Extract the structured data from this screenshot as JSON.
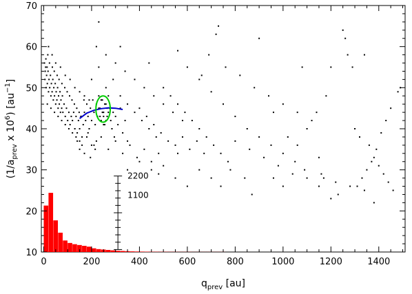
{
  "chart_data": {
    "type": "scatter",
    "xlabel_main": "q",
    "xlabel_sub": "prev",
    "xlabel_unit": " [au]",
    "ylabel_a": "(1/a",
    "ylabel_sub": "prev",
    "ylabel_b": " x 10",
    "ylabel_sup": "6",
    "ylabel_c": ") [au",
    "ylabel_sup2": "−1",
    "ylabel_d": "]",
    "xlim": [
      -10,
      1510
    ],
    "ylim": [
      10,
      70
    ],
    "x_ticks": [
      "0",
      "200",
      "400",
      "600",
      "800",
      "1000",
      "1200",
      "1400"
    ],
    "x_tick_values": [
      0,
      200,
      400,
      600,
      800,
      1000,
      1200,
      1400
    ],
    "y_ticks": [
      "10",
      "20",
      "30",
      "40",
      "50",
      "60",
      "70"
    ],
    "y_tick_values": [
      10,
      20,
      30,
      40,
      50,
      60,
      70
    ],
    "scatter_color": "#000000",
    "scatter_points": [
      [
        5,
        52
      ],
      [
        8,
        55
      ],
      [
        10,
        50
      ],
      [
        12,
        53
      ],
      [
        15,
        51
      ],
      [
        18,
        54
      ],
      [
        20,
        49
      ],
      [
        22,
        52
      ],
      [
        25,
        50
      ],
      [
        28,
        53
      ],
      [
        30,
        48
      ],
      [
        32,
        51
      ],
      [
        35,
        49
      ],
      [
        38,
        52
      ],
      [
        40,
        47
      ],
      [
        42,
        50
      ],
      [
        45,
        48
      ],
      [
        48,
        51
      ],
      [
        50,
        46
      ],
      [
        52,
        49
      ],
      [
        55,
        47
      ],
      [
        58,
        50
      ],
      [
        60,
        45
      ],
      [
        62,
        48
      ],
      [
        65,
        46
      ],
      [
        68,
        49
      ],
      [
        70,
        44
      ],
      [
        72,
        47
      ],
      [
        75,
        45
      ],
      [
        78,
        48
      ],
      [
        80,
        44
      ],
      [
        85,
        46
      ],
      [
        90,
        43
      ],
      [
        95,
        45
      ],
      [
        100,
        42
      ],
      [
        105,
        44
      ],
      [
        110,
        41
      ],
      [
        115,
        43
      ],
      [
        120,
        42
      ],
      [
        125,
        44
      ],
      [
        130,
        40
      ],
      [
        135,
        43
      ],
      [
        140,
        39
      ],
      [
        145,
        42
      ],
      [
        150,
        40
      ],
      [
        155,
        43
      ],
      [
        160,
        38
      ],
      [
        165,
        41
      ],
      [
        170,
        44
      ],
      [
        175,
        42
      ],
      [
        180,
        46
      ],
      [
        185,
        43
      ],
      [
        190,
        40
      ],
      [
        195,
        45
      ],
      [
        200,
        42
      ],
      [
        205,
        47
      ],
      [
        210,
        44
      ],
      [
        215,
        41
      ],
      [
        220,
        46
      ],
      [
        225,
        43
      ],
      [
        230,
        48
      ],
      [
        235,
        45
      ],
      [
        240,
        42
      ],
      [
        245,
        47
      ],
      [
        250,
        44
      ],
      [
        255,
        41
      ],
      [
        260,
        46
      ],
      [
        265,
        43
      ],
      [
        270,
        48
      ],
      [
        275,
        45
      ],
      [
        280,
        42
      ],
      [
        285,
        40
      ],
      [
        290,
        44
      ],
      [
        295,
        38
      ],
      [
        300,
        43
      ],
      [
        310,
        41
      ],
      [
        320,
        45
      ],
      [
        330,
        39
      ],
      [
        340,
        42
      ],
      [
        350,
        37
      ],
      [
        3,
        56
      ],
      [
        6,
        54
      ],
      [
        9,
        57
      ],
      [
        14,
        55
      ],
      [
        17,
        58
      ],
      [
        24,
        56
      ],
      [
        36,
        55
      ],
      [
        44,
        54
      ],
      [
        56,
        53
      ],
      [
        64,
        52
      ],
      [
        76,
        51
      ],
      [
        88,
        50
      ],
      [
        98,
        49
      ],
      [
        108,
        48
      ],
      [
        118,
        47
      ],
      [
        128,
        46
      ],
      [
        138,
        45
      ],
      [
        148,
        44
      ],
      [
        158,
        43
      ],
      [
        168,
        47
      ],
      [
        20,
        60
      ],
      [
        35,
        58
      ],
      [
        50,
        56
      ],
      [
        70,
        55
      ],
      [
        90,
        53
      ],
      [
        110,
        52
      ],
      [
        130,
        50
      ],
      [
        150,
        49
      ],
      [
        170,
        48
      ],
      [
        190,
        47
      ],
      [
        15,
        46
      ],
      [
        30,
        45
      ],
      [
        45,
        44
      ],
      [
        60,
        43
      ],
      [
        75,
        42
      ],
      [
        90,
        41
      ],
      [
        105,
        40
      ],
      [
        120,
        39
      ],
      [
        135,
        38
      ],
      [
        150,
        37
      ],
      [
        200,
        52
      ],
      [
        230,
        55
      ],
      [
        260,
        50
      ],
      [
        290,
        52
      ],
      [
        320,
        48
      ],
      [
        350,
        46
      ],
      [
        380,
        44
      ],
      [
        410,
        42
      ],
      [
        440,
        40
      ],
      [
        470,
        38
      ],
      [
        210,
        36
      ],
      [
        240,
        38
      ],
      [
        270,
        35
      ],
      [
        300,
        37
      ],
      [
        330,
        34
      ],
      [
        360,
        36
      ],
      [
        390,
        33
      ],
      [
        420,
        35
      ],
      [
        450,
        32
      ],
      [
        480,
        34
      ],
      [
        220,
        60
      ],
      [
        260,
        58
      ],
      [
        300,
        56
      ],
      [
        340,
        54
      ],
      [
        380,
        52
      ],
      [
        420,
        50
      ],
      [
        460,
        48
      ],
      [
        500,
        46
      ],
      [
        540,
        44
      ],
      [
        580,
        42
      ],
      [
        400,
        45
      ],
      [
        430,
        43
      ],
      [
        460,
        41
      ],
      [
        490,
        39
      ],
      [
        520,
        37
      ],
      [
        550,
        36
      ],
      [
        580,
        38
      ],
      [
        610,
        35
      ],
      [
        640,
        37
      ],
      [
        670,
        34
      ],
      [
        500,
        50
      ],
      [
        530,
        48
      ],
      [
        560,
        46
      ],
      [
        590,
        44
      ],
      [
        620,
        42
      ],
      [
        650,
        40
      ],
      [
        680,
        38
      ],
      [
        710,
        36
      ],
      [
        740,
        34
      ],
      [
        770,
        32
      ],
      [
        600,
        55
      ],
      [
        650,
        52
      ],
      [
        700,
        49
      ],
      [
        750,
        46
      ],
      [
        800,
        43
      ],
      [
        850,
        40
      ],
      [
        900,
        38
      ],
      [
        950,
        36
      ],
      [
        1000,
        34
      ],
      [
        1050,
        32
      ],
      [
        720,
        63
      ],
      [
        730,
        65
      ],
      [
        690,
        58
      ],
      [
        760,
        55
      ],
      [
        820,
        53
      ],
      [
        880,
        50
      ],
      [
        940,
        48
      ],
      [
        1000,
        46
      ],
      [
        1060,
        44
      ],
      [
        1120,
        42
      ],
      [
        800,
        37
      ],
      [
        860,
        35
      ],
      [
        920,
        33
      ],
      [
        980,
        31
      ],
      [
        1040,
        29
      ],
      [
        1100,
        28
      ],
      [
        1160,
        29
      ],
      [
        1220,
        27
      ],
      [
        1280,
        26
      ],
      [
        1340,
        25
      ],
      [
        1250,
        64
      ],
      [
        1260,
        62
      ],
      [
        1270,
        58
      ],
      [
        1290,
        55
      ],
      [
        1340,
        58
      ],
      [
        1200,
        55
      ],
      [
        1180,
        48
      ],
      [
        1140,
        44
      ],
      [
        1100,
        40
      ],
      [
        1060,
        36
      ],
      [
        1300,
        40
      ],
      [
        1320,
        38
      ],
      [
        1360,
        36
      ],
      [
        1380,
        33
      ],
      [
        1400,
        31
      ],
      [
        1420,
        29
      ],
      [
        1440,
        27
      ],
      [
        1460,
        25
      ],
      [
        1380,
        22
      ],
      [
        1200,
        23
      ],
      [
        1480,
        49
      ],
      [
        1490,
        50
      ],
      [
        1450,
        45
      ],
      [
        1430,
        42
      ],
      [
        1410,
        39
      ],
      [
        1390,
        35
      ],
      [
        1370,
        32
      ],
      [
        1350,
        30
      ],
      [
        1330,
        28
      ],
      [
        1310,
        26
      ],
      [
        230,
        66
      ],
      [
        320,
        60
      ],
      [
        440,
        56
      ],
      [
        560,
        59
      ],
      [
        660,
        53
      ],
      [
        900,
        62
      ],
      [
        1080,
        55
      ],
      [
        960,
        44
      ],
      [
        1020,
        38
      ],
      [
        1150,
        33
      ],
      [
        740,
        26
      ],
      [
        780,
        30
      ],
      [
        840,
        28
      ],
      [
        960,
        28
      ],
      [
        1090,
        30
      ],
      [
        1170,
        28
      ],
      [
        1230,
        24
      ],
      [
        1150,
        26
      ],
      [
        1000,
        26
      ],
      [
        870,
        24
      ],
      [
        250,
        41
      ],
      [
        255,
        46
      ],
      [
        245,
        44
      ],
      [
        235,
        43
      ],
      [
        265,
        45
      ],
      [
        240,
        47
      ],
      [
        260,
        42
      ],
      [
        270,
        44
      ],
      [
        230,
        45
      ],
      [
        250,
        43
      ],
      [
        180,
        38
      ],
      [
        200,
        36
      ],
      [
        220,
        37
      ],
      [
        150,
        35
      ],
      [
        170,
        34
      ],
      [
        195,
        33
      ],
      [
        215,
        35
      ],
      [
        140,
        37
      ],
      [
        160,
        36
      ],
      [
        185,
        39
      ],
      [
        350,
        30
      ],
      [
        400,
        32
      ],
      [
        450,
        30
      ],
      [
        500,
        31
      ],
      [
        550,
        28
      ],
      [
        650,
        30
      ],
      [
        700,
        28
      ],
      [
        600,
        26
      ],
      [
        560,
        34
      ],
      [
        480,
        29
      ]
    ],
    "fit_curve_color": "#0000cc",
    "fit_curve": [
      [
        150,
        42.5
      ],
      [
        180,
        43.8
      ],
      [
        210,
        44.5
      ],
      [
        240,
        44.9
      ],
      [
        270,
        45.1
      ],
      [
        300,
        45.0
      ],
      [
        330,
        44.7
      ]
    ],
    "circle_color": "#00cc00",
    "circle_center": [
      248,
      44.8
    ],
    "circle_radius_x": 30,
    "circle_radius_y": 3.2,
    "histogram_color": "#ff0000",
    "histogram_bin_width": 20,
    "histogram_bins": [
      [
        0,
        21.3
      ],
      [
        20,
        24.4
      ],
      [
        40,
        17.7
      ],
      [
        60,
        14.7
      ],
      [
        80,
        12.8
      ],
      [
        100,
        12.2
      ],
      [
        120,
        11.9
      ],
      [
        140,
        11.7
      ],
      [
        160,
        11.5
      ],
      [
        180,
        11.3
      ],
      [
        200,
        10.9
      ],
      [
        220,
        10.7
      ],
      [
        240,
        10.6
      ],
      [
        260,
        10.5
      ],
      [
        280,
        10.4
      ],
      [
        300,
        10.3
      ],
      [
        320,
        10.25
      ],
      [
        340,
        10.2
      ],
      [
        360,
        10.15
      ],
      [
        380,
        10.12
      ],
      [
        400,
        10.1
      ],
      [
        420,
        10.08
      ],
      [
        440,
        10.07
      ],
      [
        460,
        10.06
      ],
      [
        480,
        10.05
      ],
      [
        500,
        10.05
      ],
      [
        520,
        10.04
      ],
      [
        540,
        10.04
      ],
      [
        560,
        10.03
      ],
      [
        580,
        10.03
      ],
      [
        600,
        10.03
      ],
      [
        620,
        10.02
      ],
      [
        640,
        10.02
      ],
      [
        660,
        10.02
      ],
      [
        680,
        10.02
      ],
      [
        700,
        10.02
      ],
      [
        720,
        10.02
      ],
      [
        740,
        10.02
      ]
    ],
    "inset_axis_x": 310,
    "inset_axis_range": [
      10.6,
      28.5
    ],
    "inset_ticks": [
      "2200",
      "1100"
    ],
    "inset_tick_values": [
      28.5,
      23.8
    ]
  }
}
